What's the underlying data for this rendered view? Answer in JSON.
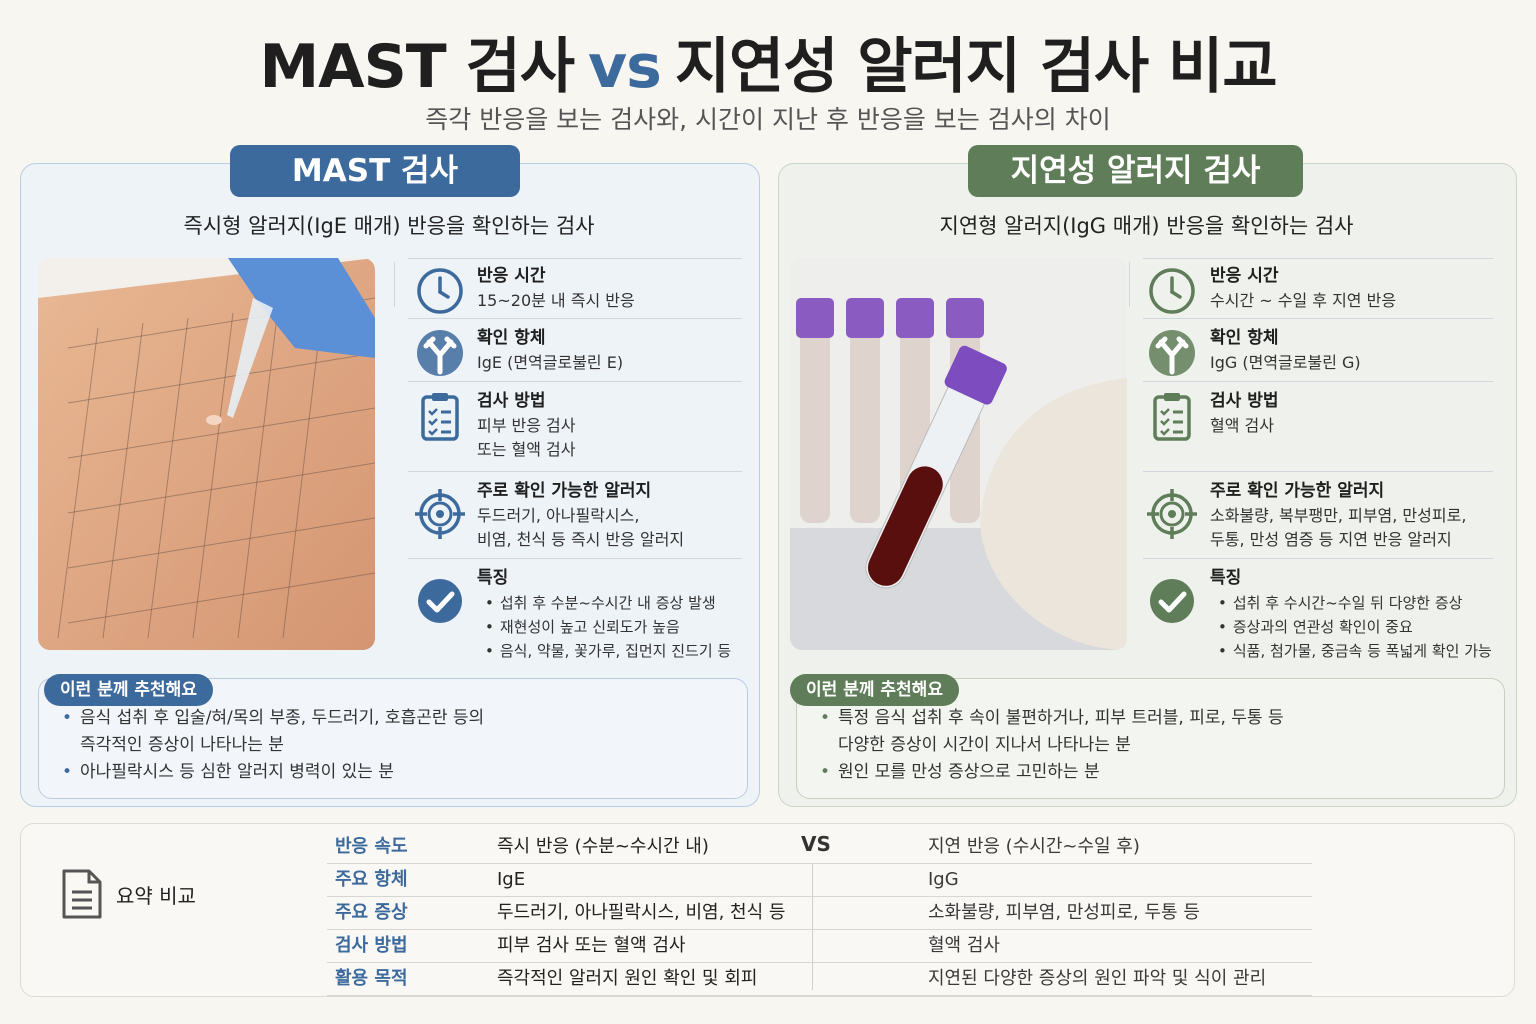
{
  "title": {
    "left": "MAST 검사",
    "vs": "vs",
    "right": "지연성 알러지 검사 비교"
  },
  "subtitle": "즉각 반응을 보는 검사와, 시간이 지난 후 반응을 보는 검사의 차이",
  "panels": [
    {
      "badge": "MAST 검사",
      "description": "즉시형 알러지(IgE 매개) 반응을 확인하는 검사",
      "items": [
        {
          "label": "반응 시간",
          "lines": [
            "15~20분 내 즉시 반응"
          ]
        },
        {
          "label": "확인 항체",
          "lines": [
            "IgE (면역글로불린 E)"
          ]
        },
        {
          "label": "검사 방법",
          "lines": [
            "피부 반응 검사",
            "또는 혈액 검사"
          ]
        },
        {
          "label": "주로 확인 가능한 알러지",
          "lines": [
            "두드러기, 아나필락시스,",
            "비염, 천식 등 즉시 반응 알러지"
          ]
        },
        {
          "label": "특징",
          "bullets": [
            "섭취 후 수분~수시간 내 증상 발생",
            "재현성이 높고 신뢰도가 높음",
            "음식, 약물, 꽃가루, 집먼지 진드기 등"
          ]
        }
      ],
      "recommend": {
        "badge": "이런 분께 추천해요",
        "bullets": [
          [
            "음식 섭취 후 입술/혀/목의 부종, 두드러기, 호흡곤란 등의",
            "즉각적인 증상이 나타나는 분"
          ],
          [
            "아나필락시스 등 심한 알러지 병력이 있는 분"
          ]
        ]
      }
    },
    {
      "badge": "지연성 알러지 검사",
      "description": "지연형 알러지(IgG 매개) 반응을 확인하는 검사",
      "items": [
        {
          "label": "반응 시간",
          "lines": [
            "수시간 ~ 수일 후 지연 반응"
          ]
        },
        {
          "label": "확인 항체",
          "lines": [
            "IgG (면역글로불린 G)"
          ]
        },
        {
          "label": "검사 방법",
          "lines": [
            "혈액 검사"
          ]
        },
        {
          "label": "주로 확인 가능한 알러지",
          "lines": [
            "소화불량, 복부팽만, 피부염, 만성피로,",
            "두통, 만성 염증 등 지연 반응 알러지"
          ]
        },
        {
          "label": "특징",
          "bullets": [
            "섭취 후 수시간~수일 뒤 다양한 증상",
            "증상과의 연관성 확인이 중요",
            "식품, 첨가물, 중금속 등 폭넓게 확인 가능"
          ]
        }
      ],
      "recommend": {
        "badge": "이런 분께 추천해요",
        "bullets": [
          [
            "특정 음식 섭취 후 속이 불편하거나, 피부 트러블, 피로, 두통 등",
            "다양한 증상이 시간이 지나서 나타나는 분"
          ],
          [
            "원인 모를 만성 증상으로 고민하는 분"
          ]
        ]
      }
    }
  ],
  "summary": {
    "title": "요약 비교",
    "vs": "VS",
    "rows": [
      {
        "label": "반응 속도",
        "left": "즉시 반응 (수분~수시간 내)",
        "right": "지연 반응 (수시간~수일 후)"
      },
      {
        "label": "주요 항체",
        "left": "IgE",
        "right": "IgG"
      },
      {
        "label": "주요 증상",
        "left": "두드러기, 아나필락시스, 비염, 천식 등",
        "right": "소화불량, 피부염, 만성피로, 두통 등"
      },
      {
        "label": "검사 방법",
        "left": "피부 검사 또는 혈액 검사",
        "right": "혈액 검사"
      },
      {
        "label": "활용 목적",
        "left": "즉각적인 알러지 원인 확인 및 회피",
        "right": "지연된 다양한 증상의 원인 파악 및 식이 관리"
      }
    ]
  }
}
